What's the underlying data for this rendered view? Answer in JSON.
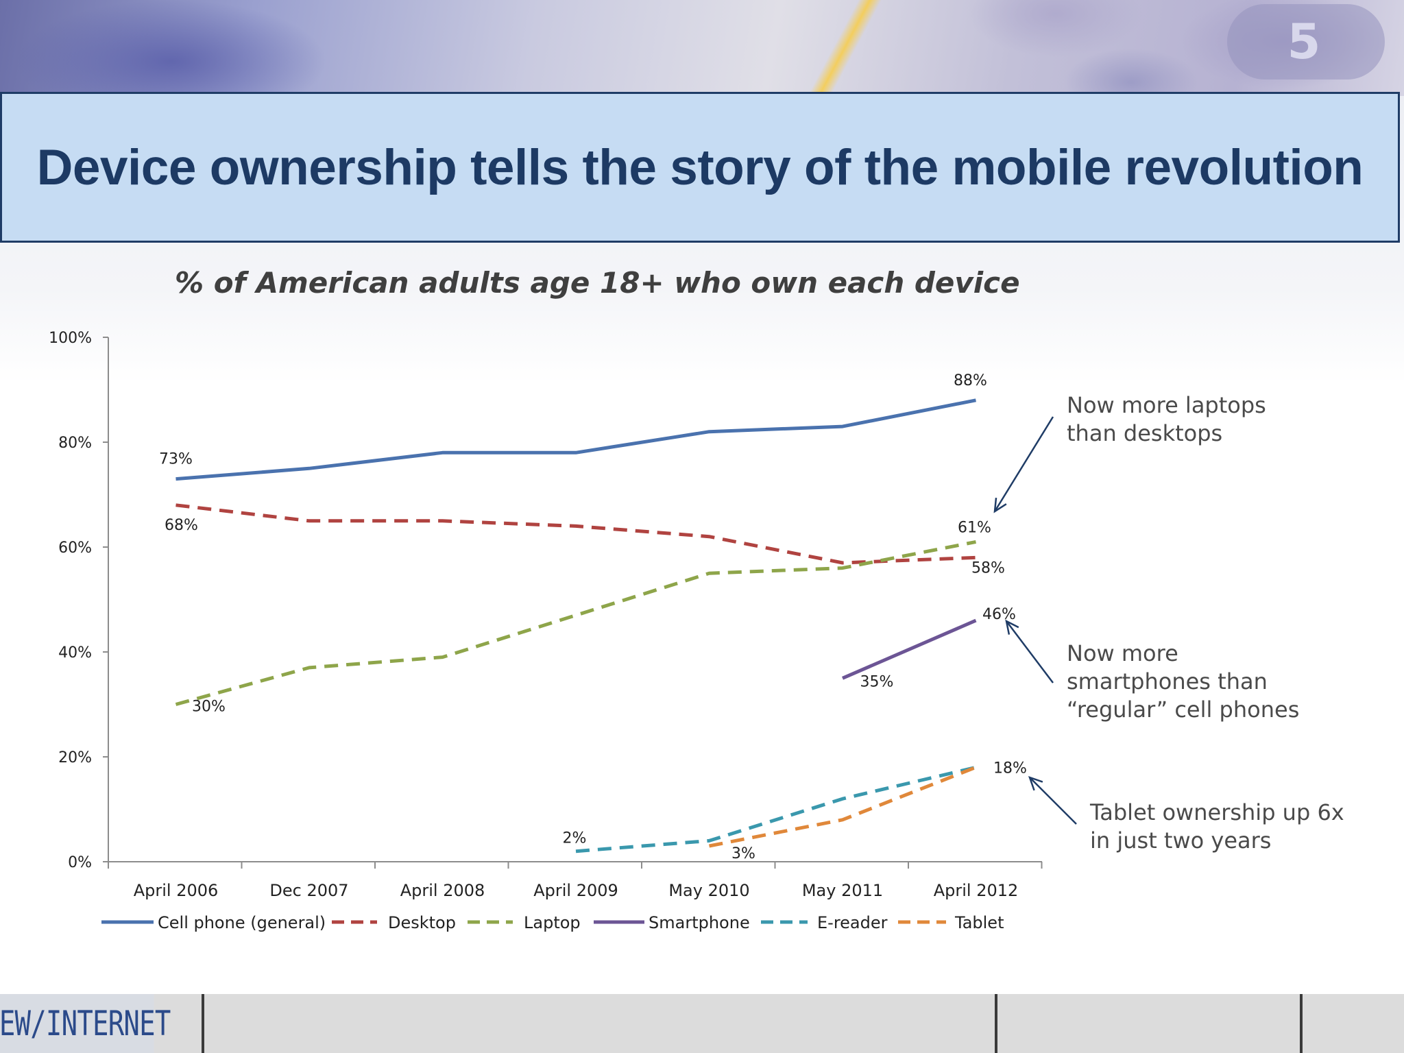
{
  "slide": {
    "title": "Device ownership tells the story of the mobile revolution",
    "subtitle": "% of American adults age 18+ who own each device",
    "brand_logo": "PEW/INTERNET"
  },
  "colors": {
    "title_bg": "#c6dcf3",
    "title_text": "#1d3a64",
    "annotation_arrow": "#1f3c66"
  },
  "chart_data": {
    "type": "line",
    "categories": [
      "April 2006",
      "Dec 2007",
      "April 2008",
      "April 2009",
      "May 2010",
      "May 2011",
      "April 2012"
    ],
    "y_ticks": [
      "0%",
      "20%",
      "40%",
      "60%",
      "80%",
      "100%"
    ],
    "ylim": [
      0,
      100
    ],
    "grid": false,
    "legend_position": "bottom",
    "series": [
      {
        "name": "Cell phone (general)",
        "color": "#4a72ae",
        "dash": "solid",
        "values": [
          73,
          75,
          78,
          78,
          82,
          83,
          88
        ]
      },
      {
        "name": "Desktop",
        "color": "#b04340",
        "dash": "dashed",
        "values": [
          68,
          65,
          65,
          64,
          62,
          57,
          58
        ]
      },
      {
        "name": "Laptop",
        "color": "#8ea54a",
        "dash": "dashed",
        "values": [
          30,
          37,
          39,
          47,
          55,
          56,
          61
        ]
      },
      {
        "name": "Smartphone",
        "color": "#6c5595",
        "dash": "solid",
        "values": [
          null,
          null,
          null,
          null,
          null,
          35,
          46
        ]
      },
      {
        "name": "E-reader",
        "color": "#3a98ad",
        "dash": "dashed",
        "values": [
          null,
          null,
          null,
          2,
          4,
          12,
          18
        ]
      },
      {
        "name": "Tablet",
        "color": "#e0883a",
        "dash": "dashed",
        "values": [
          null,
          null,
          null,
          null,
          3,
          8,
          18
        ]
      }
    ],
    "data_labels": [
      {
        "text": "73%",
        "series": 0,
        "index": 0
      },
      {
        "text": "88%",
        "series": 0,
        "index": 6
      },
      {
        "text": "68%",
        "series": 1,
        "index": 0
      },
      {
        "text": "58%",
        "series": 1,
        "index": 6
      },
      {
        "text": "30%",
        "series": 2,
        "index": 0
      },
      {
        "text": "61%",
        "series": 2,
        "index": 6
      },
      {
        "text": "35%",
        "series": 3,
        "index": 5
      },
      {
        "text": "46%",
        "series": 3,
        "index": 6
      },
      {
        "text": "2%",
        "series": 4,
        "index": 3
      },
      {
        "text": "3%",
        "series": 5,
        "index": 4
      },
      {
        "text": "18%",
        "series": 5,
        "index": 6
      }
    ],
    "annotations": [
      {
        "lines": [
          "Now more laptops",
          "than desktops"
        ]
      },
      {
        "lines": [
          "Now more",
          "smartphones than",
          "“regular” cell phones"
        ]
      },
      {
        "lines": [
          "Tablet ownership up 6x",
          "in just two years"
        ]
      }
    ]
  }
}
